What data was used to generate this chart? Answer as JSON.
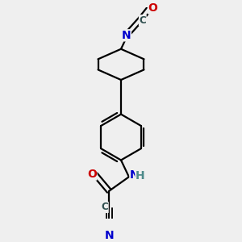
{
  "bg_color": "#efefef",
  "bond_color": "#000000",
  "N_color": "#0000cd",
  "O_color": "#cc0000",
  "C_color": "#2f4f4f",
  "H_color": "#4e8b8b",
  "line_width": 1.6,
  "figsize": [
    3.0,
    3.0
  ],
  "dpi": 100,
  "xlim": [
    -1.2,
    1.2
  ],
  "ylim": [
    -2.4,
    2.4
  ]
}
